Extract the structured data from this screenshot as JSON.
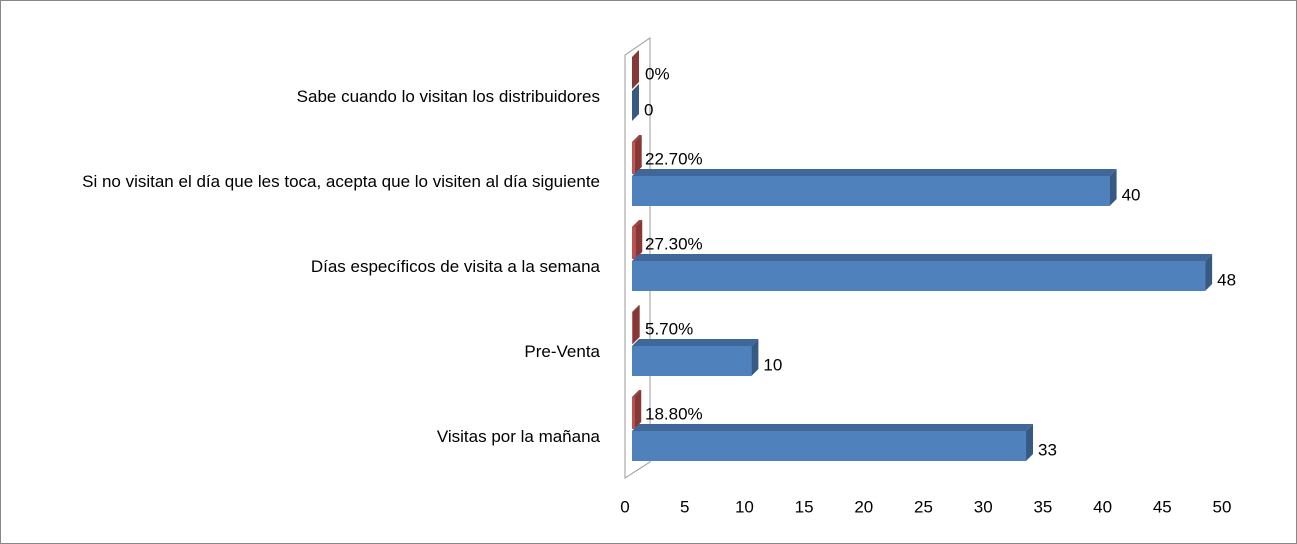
{
  "chart_data": {
    "type": "bar",
    "orientation": "horizontal",
    "categories": [
      "Visitas por la mañana",
      "Pre-Venta",
      "Días específicos de visita a la semana",
      "Si no visitan el día que les toca, acepta que lo visiten al día siguiente",
      "Sabe cuando lo visitan los distribuidores"
    ],
    "series": [
      {
        "color": "#c0504d",
        "values": [
          0.188,
          0.057,
          0.273,
          0.227,
          0
        ],
        "value_labels": [
          "18.80%",
          "5.70%",
          "27.30%",
          "22.70%",
          "0%"
        ]
      },
      {
        "color": "#4f81bd",
        "values": [
          33,
          10,
          48,
          40,
          0
        ]
      }
    ],
    "xlim": [
      0,
      50
    ],
    "xticks": [
      0,
      5,
      10,
      15,
      20,
      25,
      30,
      35,
      40,
      45,
      50
    ]
  }
}
